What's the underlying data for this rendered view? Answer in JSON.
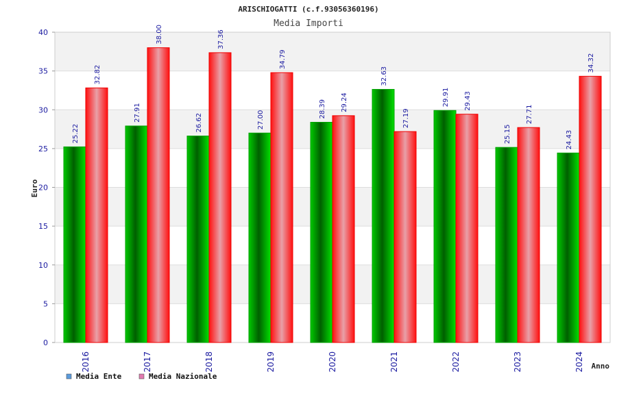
{
  "chart_data": {
    "type": "bar",
    "title": "ARISCHIOGATTI (c.f.93056360196)",
    "subtitle": "Media Importi",
    "ylabel": "Euro",
    "xlabel": "Anno",
    "ylim": [
      0,
      40
    ],
    "yticks": [
      0,
      5,
      10,
      15,
      20,
      25,
      30,
      35,
      40
    ],
    "categories": [
      "2016",
      "2017",
      "2018",
      "2019",
      "2020",
      "2021",
      "2022",
      "2023",
      "2024"
    ],
    "series": [
      {
        "name": "Media Ente",
        "values": [
          25.22,
          27.91,
          26.62,
          27.0,
          28.39,
          32.63,
          29.91,
          25.15,
          24.43
        ],
        "color": "#00b000",
        "legend_color": "#5b9bdc"
      },
      {
        "name": "Media Nazionale",
        "values": [
          32.82,
          38.0,
          37.36,
          34.79,
          29.24,
          27.19,
          29.43,
          27.71,
          34.32
        ],
        "color": "#ff1a1a",
        "legend_color": "#e07ab0"
      }
    ],
    "value_labels": [
      [
        "25.22",
        "27.91",
        "26.62",
        "27.00",
        "28.39",
        "32.63",
        "29.91",
        "25.15",
        "24.43"
      ],
      [
        "32.82",
        "38.00",
        "37.36",
        "34.79",
        "29.24",
        "27.19",
        "29.43",
        "27.71",
        "34.32"
      ]
    ],
    "grid": true,
    "legend_position": "bottom-left"
  }
}
